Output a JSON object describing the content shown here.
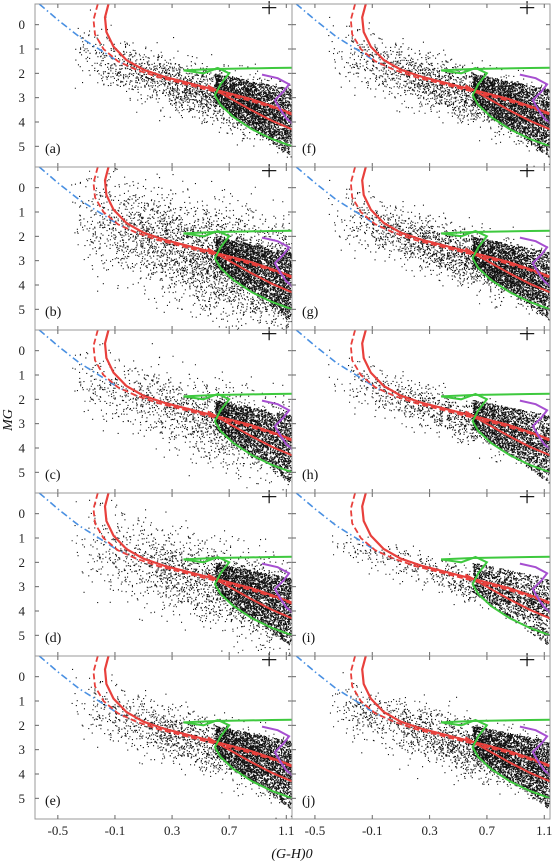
{
  "figure": {
    "xlabel": "(G-H)0",
    "ylabel": "MG"
  },
  "chart_data": {
    "type": "scatter",
    "layout": "grid of 10 panels, 5 rows x 2 columns",
    "xlim": [
      -0.66,
      1.14
    ],
    "ylim": [
      5.85,
      -0.85
    ],
    "x_ticks": [
      -0.5,
      -0.1,
      0.3,
      0.7,
      1.1
    ],
    "x_tick_labels": [
      "-0.5",
      "-0.1",
      "0.3",
      "0.7",
      "1.1"
    ],
    "y_ticks": [
      0,
      1,
      2,
      3,
      4,
      5
    ],
    "y_tick_labels": [
      "0",
      "1",
      "2",
      "3",
      "4",
      "5"
    ],
    "grid": false,
    "error_bar": {
      "x": 0.98,
      "y": -0.7,
      "dx": 0.02,
      "dy": 0.15,
      "symbol": "+"
    },
    "colors": {
      "points": "#111111",
      "blue_dashdot": "#4a90e2",
      "red": "#e8403c",
      "green": "#3ec93e",
      "purple": "#a64fd0",
      "frame": "#999999"
    },
    "panels": [
      {
        "label": "(a)",
        "spread": 1.0,
        "density": 1.0
      },
      {
        "label": "(b)",
        "spread": 1.9,
        "density": 1.5
      },
      {
        "label": "(c)",
        "spread": 1.4,
        "density": 0.75
      },
      {
        "label": "(d)",
        "spread": 1.5,
        "density": 0.9
      },
      {
        "label": "(e)",
        "spread": 1.0,
        "density": 0.8
      },
      {
        "label": "(f)",
        "spread": 1.0,
        "density": 1.0
      },
      {
        "label": "(g)",
        "spread": 1.0,
        "density": 1.0
      },
      {
        "label": "(h)",
        "spread": 0.8,
        "density": 0.6
      },
      {
        "label": "(i)",
        "spread": 0.6,
        "density": 0.35
      },
      {
        "label": "(j)",
        "spread": 1.0,
        "density": 0.9
      }
    ],
    "curves": {
      "blue_dashdot": [
        [
          -0.63,
          -0.85
        ],
        [
          -0.5,
          -0.2
        ],
        [
          -0.35,
          0.5
        ],
        [
          -0.2,
          1.05
        ],
        [
          -0.08,
          1.5
        ],
        [
          0.05,
          1.85
        ]
      ],
      "red_dashed": [
        [
          -0.22,
          -0.85
        ],
        [
          -0.25,
          -0.2
        ],
        [
          -0.24,
          0.4
        ],
        [
          -0.18,
          1.0
        ],
        [
          -0.08,
          1.5
        ],
        [
          0.05,
          1.85
        ],
        [
          0.2,
          2.15
        ],
        [
          0.4,
          2.45
        ],
        [
          0.6,
          2.75
        ],
        [
          0.8,
          3.05
        ],
        [
          1.0,
          3.4
        ],
        [
          1.14,
          3.7
        ]
      ],
      "red_solid": [
        [
          -0.145,
          -0.85
        ],
        [
          -0.17,
          -0.3
        ],
        [
          -0.16,
          0.3
        ],
        [
          -0.11,
          0.9
        ],
        [
          -0.02,
          1.45
        ],
        [
          0.1,
          1.85
        ],
        [
          0.25,
          2.15
        ],
        [
          0.45,
          2.45
        ],
        [
          0.65,
          2.75
        ],
        [
          0.85,
          3.05
        ],
        [
          1.0,
          3.35
        ],
        [
          1.14,
          3.65
        ]
      ],
      "red_lower": [
        [
          0.55,
          2.5
        ],
        [
          0.7,
          3.0
        ],
        [
          0.85,
          3.5
        ],
        [
          1.0,
          3.95
        ],
        [
          1.14,
          4.3
        ]
      ],
      "green_top": [
        [
          0.38,
          1.88
        ],
        [
          0.6,
          1.82
        ],
        [
          0.8,
          1.8
        ],
        [
          1.0,
          1.78
        ],
        [
          1.14,
          1.77
        ]
      ],
      "green_main": [
        [
          0.38,
          1.88
        ],
        [
          0.52,
          2.0
        ],
        [
          0.62,
          1.78
        ],
        [
          0.7,
          2.0
        ],
        [
          0.64,
          2.45
        ],
        [
          0.6,
          2.9
        ],
        [
          0.64,
          3.3
        ],
        [
          0.73,
          3.8
        ],
        [
          0.86,
          4.3
        ],
        [
          1.0,
          4.7
        ],
        [
          1.14,
          5.0
        ]
      ],
      "purple": [
        [
          0.93,
          2.05
        ],
        [
          1.04,
          2.2
        ],
        [
          1.12,
          2.45
        ],
        [
          1.08,
          2.75
        ],
        [
          1.02,
          3.1
        ],
        [
          1.06,
          3.5
        ],
        [
          1.1,
          3.85
        ],
        [
          1.14,
          4.05
        ]
      ]
    }
  }
}
